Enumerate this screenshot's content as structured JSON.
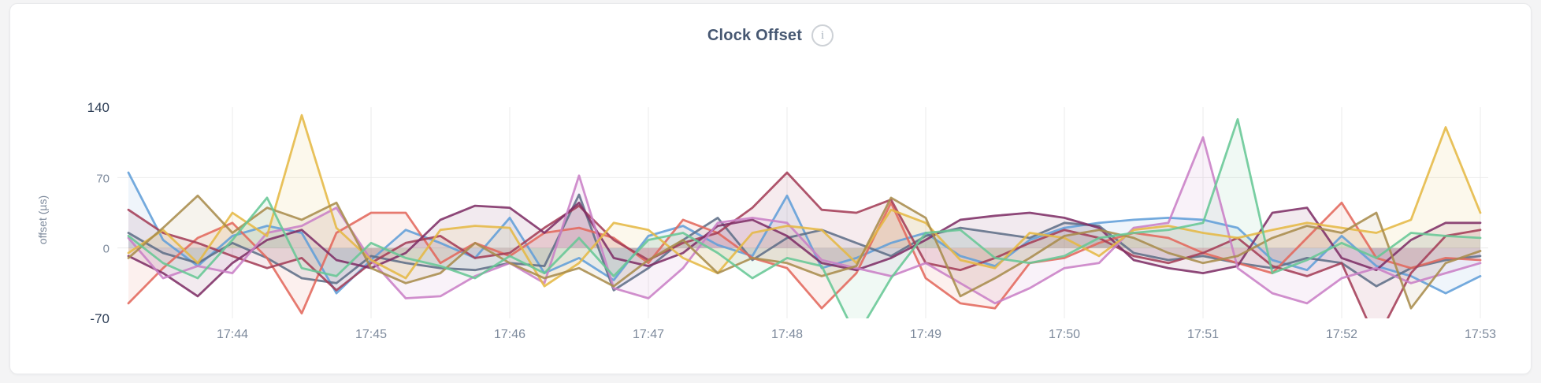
{
  "page": {
    "background": "#f4f4f5"
  },
  "card": {
    "background": "#ffffff",
    "border_color": "#e8e9eb"
  },
  "header": {
    "title": "Clock Offset",
    "info_icon_glyph": "i"
  },
  "chart_data": {
    "type": "line",
    "title": "Clock Offset",
    "xlabel": "",
    "ylabel": "offset (µs)",
    "ylim": [
      -70,
      140
    ],
    "yticks": [
      {
        "label": "140",
        "value": 140,
        "emphasis": true
      },
      {
        "label": "70",
        "value": 70,
        "emphasis": false
      },
      {
        "label": "0",
        "value": 0,
        "emphasis": false
      },
      {
        "label": "-70",
        "value": -70,
        "emphasis": true
      }
    ],
    "x_start": "17:43:15",
    "x_interval_seconds": 15,
    "points_per_series": 40,
    "xticks": [
      {
        "label": "17:44",
        "index": 3
      },
      {
        "label": "17:45",
        "index": 7
      },
      {
        "label": "17:46",
        "index": 11
      },
      {
        "label": "17:47",
        "index": 15
      },
      {
        "label": "17:48",
        "index": 19
      },
      {
        "label": "17:49",
        "index": 23
      },
      {
        "label": "17:50",
        "index": 27
      },
      {
        "label": "17:51",
        "index": 31
      },
      {
        "label": "17:52",
        "index": 35
      },
      {
        "label": "17:53",
        "index": 39
      }
    ],
    "grid": {
      "horizontal_values": [
        70,
        0
      ],
      "color": "#ebebeb",
      "vertical_at_ticks": true
    },
    "axis_colors": {
      "tick": "#7d8a9c",
      "tick_emphasis": "#2c3d55"
    },
    "legend": "none",
    "fill_to_zero": true,
    "fill_opacity": 0.1,
    "line_width": 2.8,
    "series": [
      {
        "name": "series-blue",
        "color": "#619ED8",
        "values": [
          75,
          8,
          -18,
          12,
          22,
          15,
          -45,
          -12,
          18,
          5,
          -10,
          30,
          -25,
          -10,
          -32,
          12,
          22,
          3,
          -8,
          52,
          -20,
          -10,
          5,
          15,
          -8,
          -18,
          8,
          20,
          25,
          28,
          30,
          28,
          20,
          -12,
          -22,
          12,
          -18,
          -28,
          -45,
          -28
        ]
      },
      {
        "name": "series-slate",
        "color": "#5F6E87",
        "values": [
          15,
          -5,
          -15,
          5,
          -10,
          -30,
          -35,
          -8,
          -15,
          -20,
          -22,
          -15,
          -18,
          53,
          -42,
          -20,
          8,
          30,
          -12,
          10,
          18,
          5,
          -8,
          12,
          20,
          15,
          10,
          25,
          22,
          -5,
          -12,
          -8,
          -15,
          -20,
          -10,
          -15,
          -38,
          -20,
          -12,
          -8
        ]
      },
      {
        "name": "series-red",
        "color": "#E2685C",
        "values": [
          -55,
          -20,
          10,
          25,
          -10,
          -65,
          15,
          35,
          35,
          -15,
          5,
          -8,
          15,
          20,
          10,
          -15,
          28,
          15,
          -10,
          -20,
          -60,
          -25,
          45,
          -30,
          -55,
          -60,
          -15,
          -10,
          5,
          15,
          10,
          -5,
          -15,
          -25,
          10,
          45,
          -10,
          -20,
          -10,
          -12
        ]
      },
      {
        "name": "series-crimson",
        "color": "#A43D58",
        "values": [
          38,
          15,
          5,
          -8,
          -20,
          -10,
          -42,
          -15,
          5,
          12,
          -10,
          -5,
          20,
          42,
          8,
          -12,
          5,
          15,
          40,
          75,
          38,
          35,
          48,
          -15,
          -22,
          -10,
          5,
          18,
          10,
          -8,
          -15,
          -5,
          10,
          -18,
          -28,
          -15,
          -92,
          -25,
          12,
          18
        ]
      },
      {
        "name": "series-plum",
        "color": "#7E2F66",
        "values": [
          -8,
          -25,
          -48,
          -15,
          8,
          18,
          -12,
          -20,
          -5,
          28,
          42,
          40,
          15,
          45,
          -10,
          -18,
          -5,
          22,
          28,
          12,
          -15,
          -22,
          -10,
          8,
          28,
          32,
          35,
          30,
          20,
          -12,
          -20,
          -25,
          -18,
          35,
          40,
          -10,
          -22,
          8,
          25,
          25
        ]
      },
      {
        "name": "series-orchid",
        "color": "#C97FC6",
        "values": [
          10,
          -30,
          -18,
          -25,
          15,
          22,
          40,
          -12,
          -50,
          -48,
          -28,
          -15,
          -35,
          72,
          -40,
          -50,
          -20,
          25,
          30,
          25,
          -12,
          -20,
          -28,
          -15,
          -35,
          -55,
          -40,
          -20,
          -15,
          20,
          25,
          110,
          -20,
          -45,
          -55,
          -30,
          -20,
          -35,
          -25,
          -15
        ]
      },
      {
        "name": "series-gold",
        "color": "#E5B844",
        "values": [
          -5,
          18,
          -15,
          35,
          12,
          132,
          20,
          -12,
          -30,
          18,
          22,
          20,
          -38,
          -15,
          25,
          18,
          -10,
          -25,
          15,
          22,
          18,
          -15,
          38,
          25,
          -12,
          -20,
          15,
          10,
          -8,
          18,
          22,
          15,
          10,
          18,
          25,
          20,
          15,
          28,
          120,
          35
        ]
      },
      {
        "name": "series-olive",
        "color": "#A98C4C",
        "values": [
          -10,
          20,
          52,
          15,
          40,
          28,
          45,
          -20,
          -35,
          -25,
          5,
          -15,
          -30,
          -20,
          -38,
          -12,
          8,
          -25,
          -10,
          -15,
          -28,
          -18,
          50,
          30,
          -48,
          -30,
          -10,
          12,
          18,
          10,
          -5,
          -15,
          -8,
          10,
          22,
          15,
          35,
          -60,
          -15,
          -3
        ]
      },
      {
        "name": "series-green",
        "color": "#67C795",
        "values": [
          12,
          -15,
          -30,
          8,
          50,
          -20,
          -28,
          5,
          -10,
          -18,
          -30,
          -8,
          -25,
          10,
          -28,
          8,
          15,
          -5,
          -30,
          -10,
          -18,
          -88,
          -30,
          15,
          18,
          -10,
          -15,
          -8,
          10,
          15,
          18,
          25,
          128,
          -25,
          -12,
          5,
          -10,
          15,
          12,
          10
        ]
      }
    ]
  }
}
